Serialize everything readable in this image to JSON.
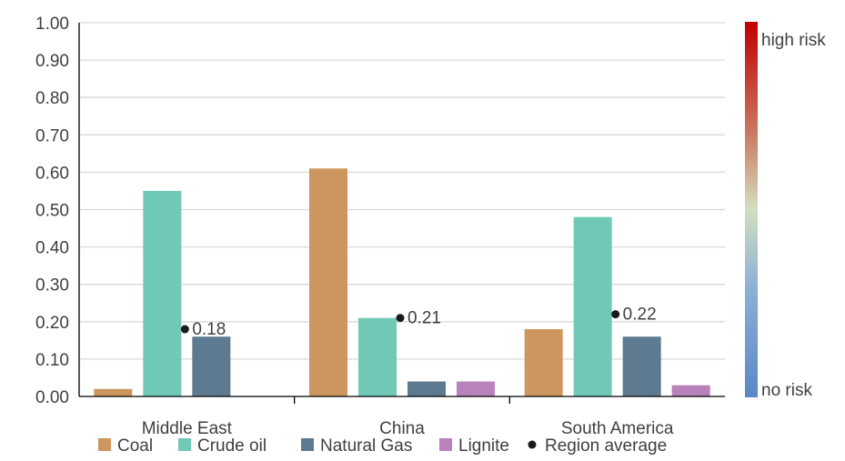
{
  "chart_data": {
    "type": "bar",
    "categories": [
      "Middle East",
      "China",
      "South America"
    ],
    "series": [
      {
        "name": "Coal",
        "color": "#CD965E",
        "values": [
          0.02,
          0.61,
          0.18
        ]
      },
      {
        "name": "Crude oil",
        "color": "#70C9B6",
        "values": [
          0.55,
          0.21,
          0.48
        ]
      },
      {
        "name": "Natural Gas",
        "color": "#5E7A90",
        "values": [
          0.16,
          0.04,
          0.16
        ]
      },
      {
        "name": "Lignite",
        "color": "#B982BC",
        "values": [
          null,
          0.04,
          0.03
        ]
      }
    ],
    "region_average": {
      "name": "Region average",
      "color": "#1a1a1a",
      "values": [
        0.18,
        0.21,
        0.22
      ],
      "labels": [
        "0.18",
        "0.21",
        "0.22"
      ]
    },
    "ylim": [
      0,
      1
    ],
    "yticks": [
      "0.00",
      "0.10",
      "0.20",
      "0.30",
      "0.40",
      "0.50",
      "0.60",
      "0.70",
      "0.80",
      "0.90",
      "1.00"
    ],
    "grid": true,
    "legend_position": "bottom",
    "risk_scale": {
      "high_label": "high risk",
      "low_label": "no risk",
      "colors": [
        "#C00000",
        "#CB7A63",
        "#D2E0C0",
        "#8FB1D6",
        "#5A87C6"
      ]
    }
  }
}
